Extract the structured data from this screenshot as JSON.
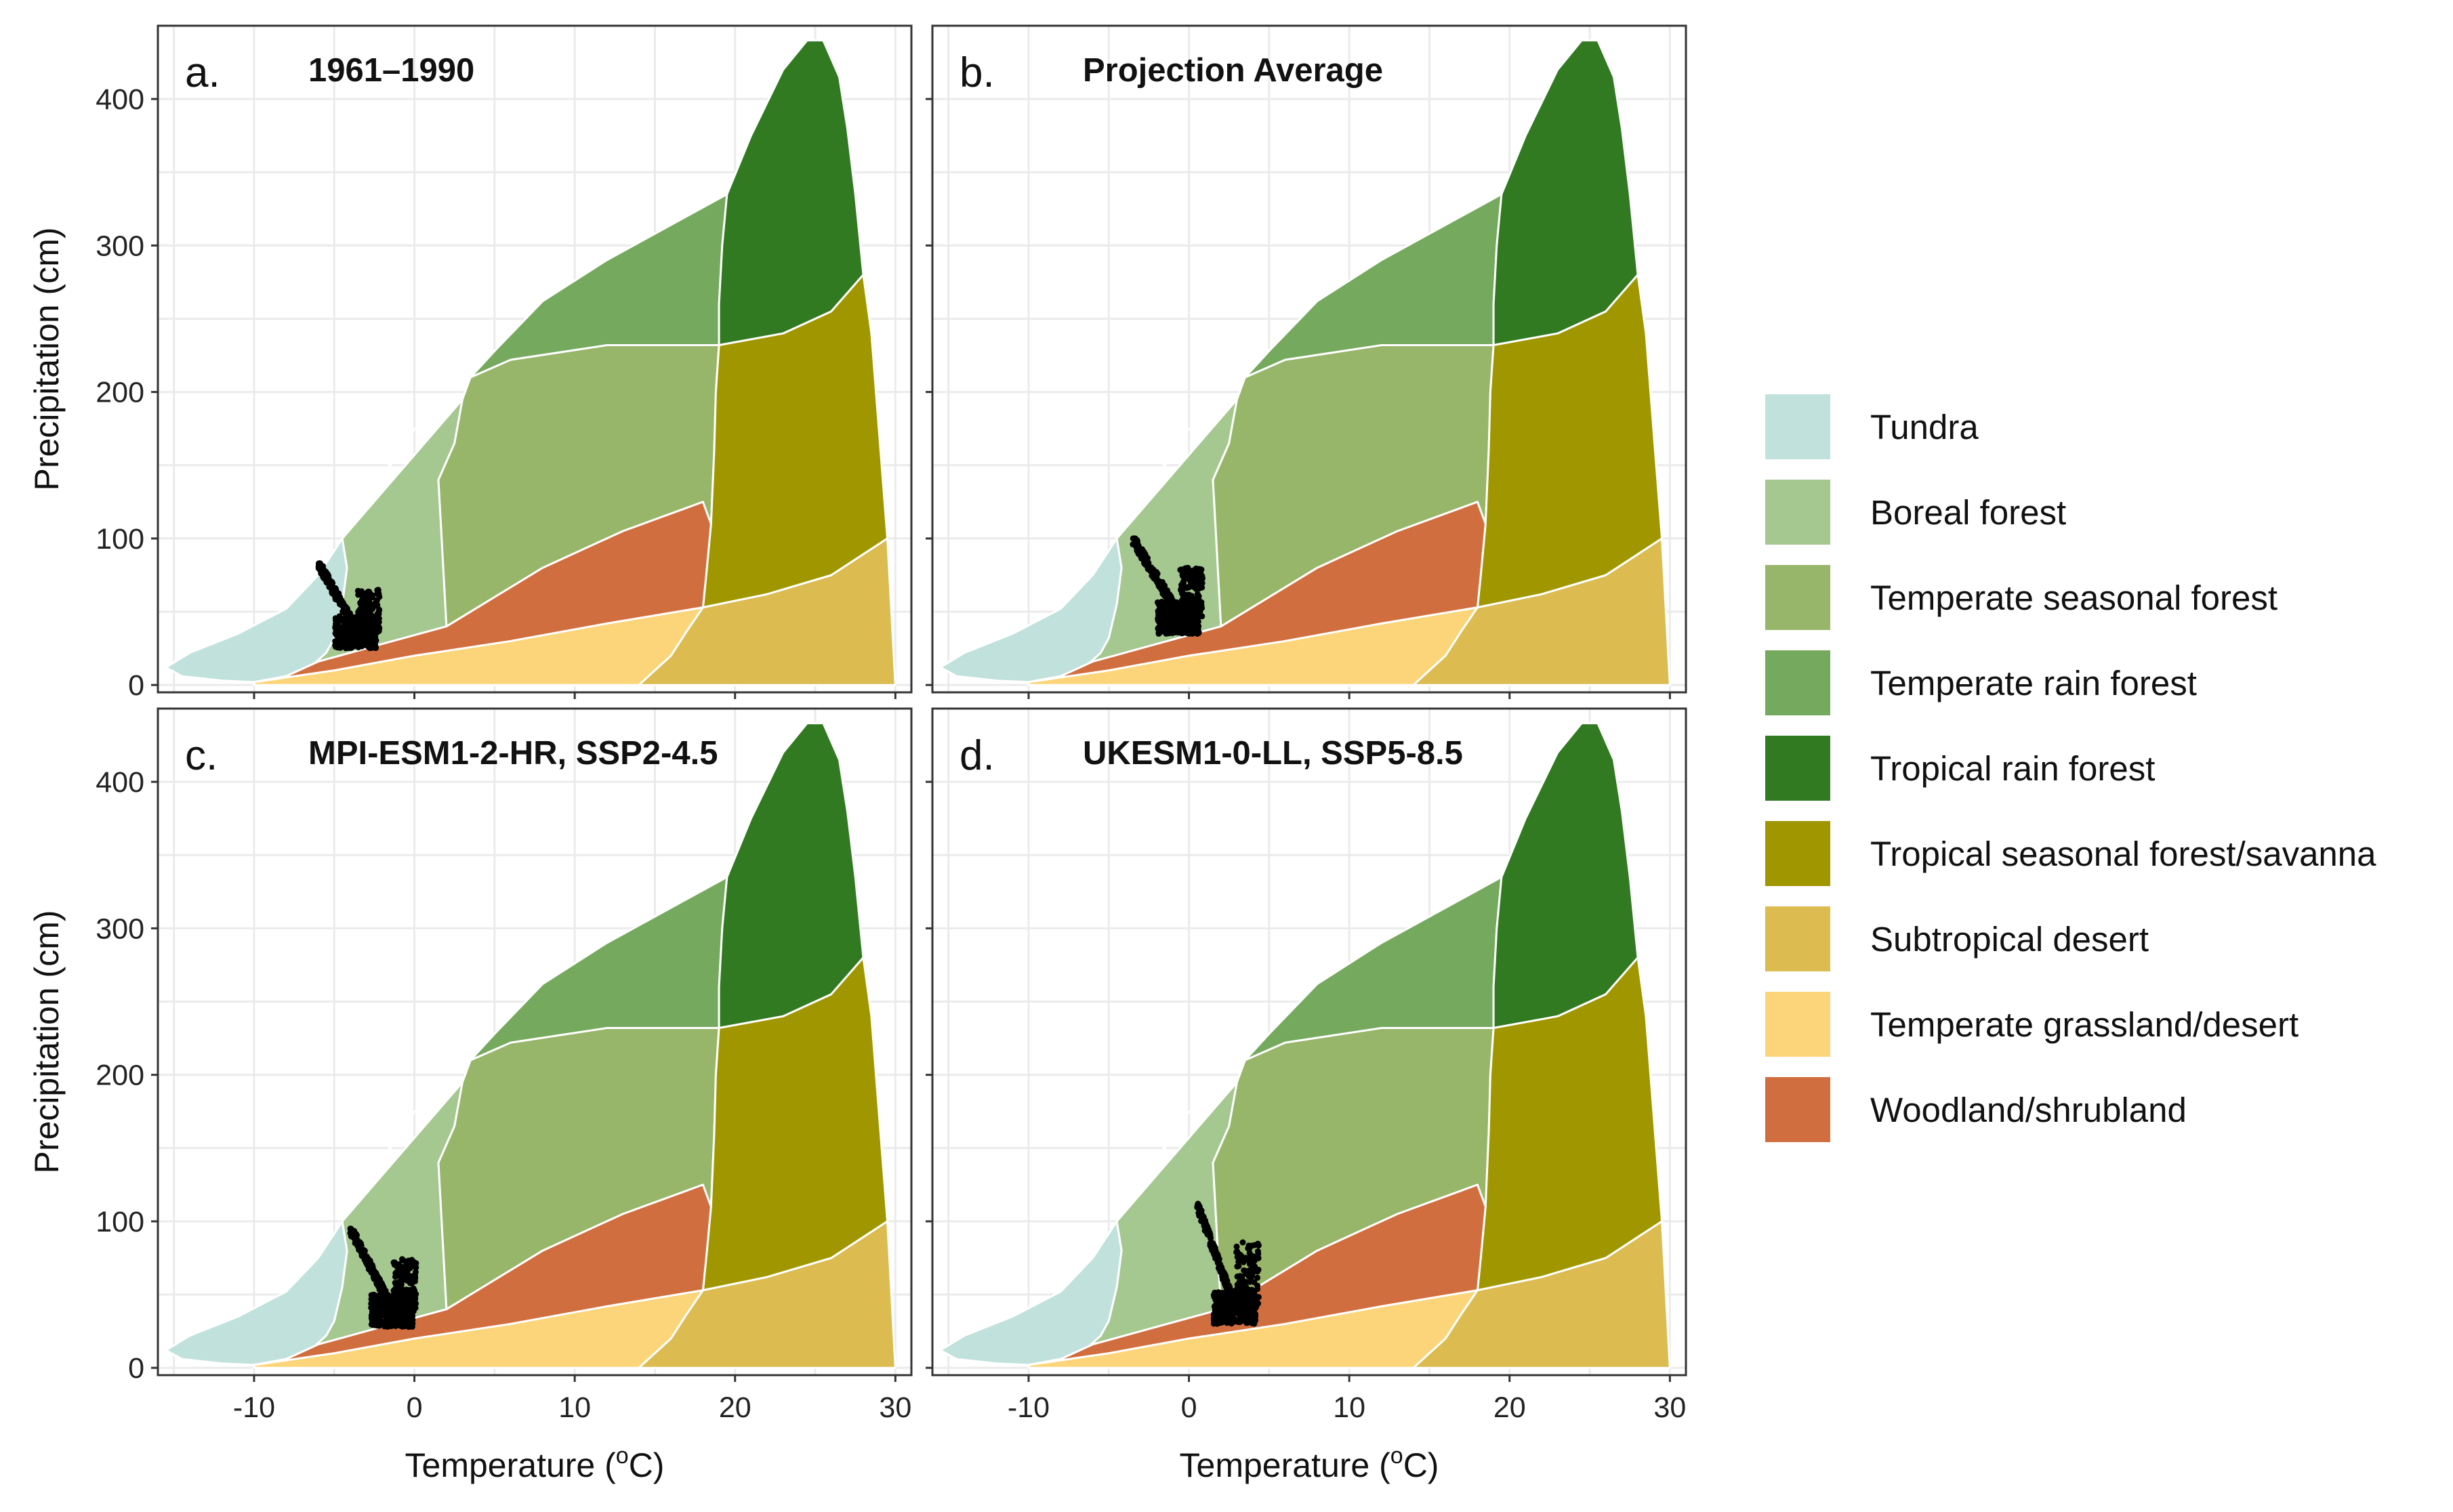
{
  "colors": {
    "Tundra": "#c1e1dd",
    "Boreal forest": "#a5c790",
    "Temperate seasonal forest": "#97b669",
    "Temperate rain forest": "#75a95e",
    "Tropical rain forest": "#317a22",
    "Tropical seasonal forest/savanna": "#a09700",
    "Subtropical desert": "#dcbb50",
    "Temperate grassland/desert": "#fcd57a",
    "Woodland/shrubland": "#d16e3f"
  },
  "legend": {
    "items": [
      {
        "label": "Tundra",
        "color": "#c1e1dd"
      },
      {
        "label": "Boreal forest",
        "color": "#a5c790"
      },
      {
        "label": "Temperate seasonal forest",
        "color": "#97b669"
      },
      {
        "label": "Temperate rain forest",
        "color": "#75a95e"
      },
      {
        "label": "Tropical rain forest",
        "color": "#317a22"
      },
      {
        "label": "Tropical seasonal forest/savanna",
        "color": "#a09700"
      },
      {
        "label": "Subtropical desert",
        "color": "#dcbb50"
      },
      {
        "label": "Temperate grassland/desert",
        "color": "#fcd57a"
      },
      {
        "label": "Woodland/shrubland",
        "color": "#d16e3f"
      }
    ]
  },
  "chart_data": [
    {
      "type": "scatter",
      "panel": "a.",
      "title": "1961–1990",
      "xlabel": "Temperature (oC)",
      "ylabel": "Precipitation (cm)",
      "xticks": [
        -10,
        0,
        10,
        20,
        30
      ],
      "yticks": [
        0,
        100,
        200,
        300,
        400
      ],
      "xlim": [
        -16,
        31
      ],
      "ylim": [
        -5,
        450
      ],
      "background": "Whittaker biome polygons",
      "points_cloud": {
        "t_range": [
          -6,
          -1.5
        ],
        "p_range": [
          15,
          83
        ],
        "n": 700
      }
    },
    {
      "type": "scatter",
      "panel": "b.",
      "title": "Projection Average",
      "xlabel": "Temperature (oC)",
      "ylabel": "Precipitation (cm)",
      "xticks": [
        -10,
        0,
        10,
        20,
        30
      ],
      "yticks": [
        0,
        100,
        200,
        300,
        400
      ],
      "xlim": [
        -16,
        31
      ],
      "ylim": [
        -5,
        450
      ],
      "background": "Whittaker biome polygons",
      "points_cloud": {
        "t_range": [
          -3.5,
          2
        ],
        "p_range": [
          25,
          100
        ],
        "n": 700
      }
    },
    {
      "type": "scatter",
      "panel": "c.",
      "title": "MPI-ESM1-2-HR, SSP2-4.5",
      "xlabel": "Temperature (oC)",
      "ylabel": "Precipitation (cm)",
      "xticks": [
        -10,
        0,
        10,
        20,
        30
      ],
      "yticks": [
        0,
        100,
        200,
        300,
        400
      ],
      "xlim": [
        -16,
        31
      ],
      "ylim": [
        -5,
        450
      ],
      "background": "Whittaker biome polygons",
      "points_cloud": {
        "t_range": [
          -4,
          1
        ],
        "p_range": [
          18,
          95
        ],
        "n": 700
      }
    },
    {
      "type": "scatter",
      "panel": "d.",
      "title": "UKESM1-0-LL, SSP5-8.5",
      "xlabel": "Temperature (oC)",
      "ylabel": "Precipitation (cm)",
      "xticks": [
        -10,
        0,
        10,
        20,
        30
      ],
      "yticks": [
        0,
        100,
        200,
        300,
        400
      ],
      "xlim": [
        -16,
        31
      ],
      "ylim": [
        -5,
        450
      ],
      "background": "Whittaker biome polygons",
      "points_cloud": {
        "t_range": [
          0.5,
          5
        ],
        "p_range": [
          20,
          112
        ],
        "n": 700
      }
    }
  ]
}
